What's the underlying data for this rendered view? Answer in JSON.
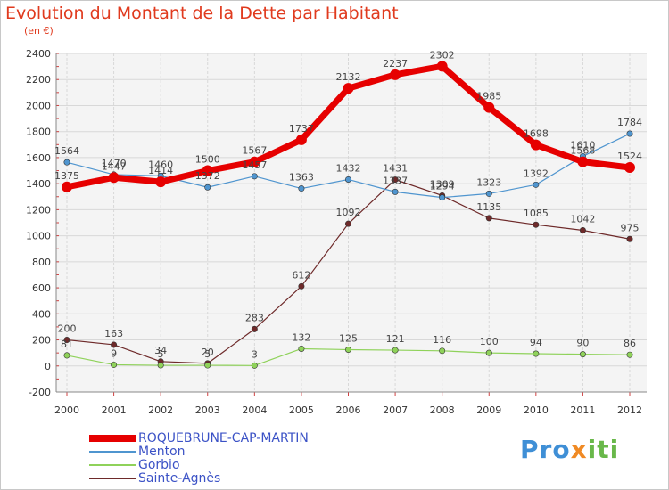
{
  "chart_data": {
    "type": "line",
    "title": "Evolution du Montant de la Dette par Habitant",
    "subtitle": "(en €)",
    "x": [
      "2000",
      "2001",
      "2002",
      "2003",
      "2004",
      "2005",
      "2006",
      "2007",
      "2008",
      "2009",
      "2010",
      "2011",
      "2012"
    ],
    "ylim": [
      -200,
      2400
    ],
    "yticks": [
      -200,
      0,
      200,
      400,
      600,
      800,
      1000,
      1200,
      1400,
      1600,
      1800,
      2000,
      2200,
      2400
    ],
    "grid": true,
    "legend_position": "bottom-left",
    "series": [
      {
        "name": "ROQUEBRUNE-CAP-MARTIN",
        "color": "#e60000",
        "values": [
          1375,
          1447,
          1414,
          1500,
          1567,
          1737,
          2132,
          2237,
          2302,
          1985,
          1698,
          1568,
          1524
        ]
      },
      {
        "name": "Menton",
        "color": "#4f95cf",
        "values": [
          1564,
          1470,
          1460,
          1372,
          1457,
          1363,
          1432,
          1337,
          1294,
          1323,
          1392,
          1610,
          1784
        ]
      },
      {
        "name": "Gorbio",
        "color": "#8fd25a",
        "values": [
          81,
          9,
          5,
          5,
          3,
          132,
          125,
          121,
          116,
          100,
          94,
          90,
          86
        ]
      },
      {
        "name": "Sainte-Agnès",
        "color": "#6e2a2a",
        "values": [
          200,
          163,
          34,
          20,
          283,
          612,
          1092,
          1431,
          1309,
          1135,
          1085,
          1042,
          975
        ]
      }
    ]
  },
  "logo": {
    "part1": "Pro",
    "part2": "x",
    "part3": "iti"
  }
}
